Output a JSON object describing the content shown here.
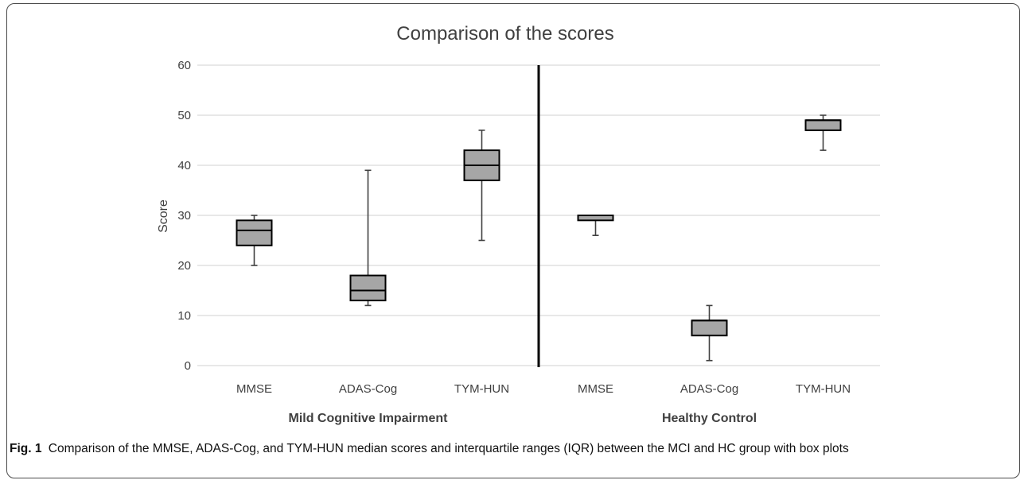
{
  "figure": {
    "caption_label": "Fig. 1",
    "caption_text": "Comparison of the MMSE, ADAS-Cog, and TYM-HUN median scores and interquartile ranges (IQR) between the MCI and HC group with box plots"
  },
  "chart_data": {
    "type": "boxplot",
    "title": "Comparison of the scores",
    "ylabel": "Score",
    "ylim": [
      0,
      60
    ],
    "yticks": [
      0,
      10,
      20,
      30,
      40,
      50,
      60
    ],
    "grid": true,
    "box_color": "#a6a6a6",
    "groups": [
      {
        "label": "Mild Cognitive Impairment",
        "boxes": [
          {
            "category": "MMSE",
            "min": 20,
            "q1": 24,
            "median": 27,
            "q3": 29,
            "max": 30
          },
          {
            "category": "ADAS-Cog",
            "min": 12,
            "q1": 13,
            "median": 15,
            "q3": 18,
            "max": 39
          },
          {
            "category": "TYM-HUN",
            "min": 25,
            "q1": 37,
            "median": 40,
            "q3": 43,
            "max": 47
          }
        ]
      },
      {
        "label": "Healthy Control",
        "boxes": [
          {
            "category": "MMSE",
            "min": 26,
            "q1": 29,
            "median": 30,
            "q3": 30,
            "max": 30
          },
          {
            "category": "ADAS-Cog",
            "min": 1,
            "q1": 6,
            "median": 9,
            "q3": 9,
            "max": 12
          },
          {
            "category": "TYM-HUN",
            "min": 43,
            "q1": 47,
            "median": 49,
            "q3": 49,
            "max": 50
          }
        ]
      }
    ]
  }
}
